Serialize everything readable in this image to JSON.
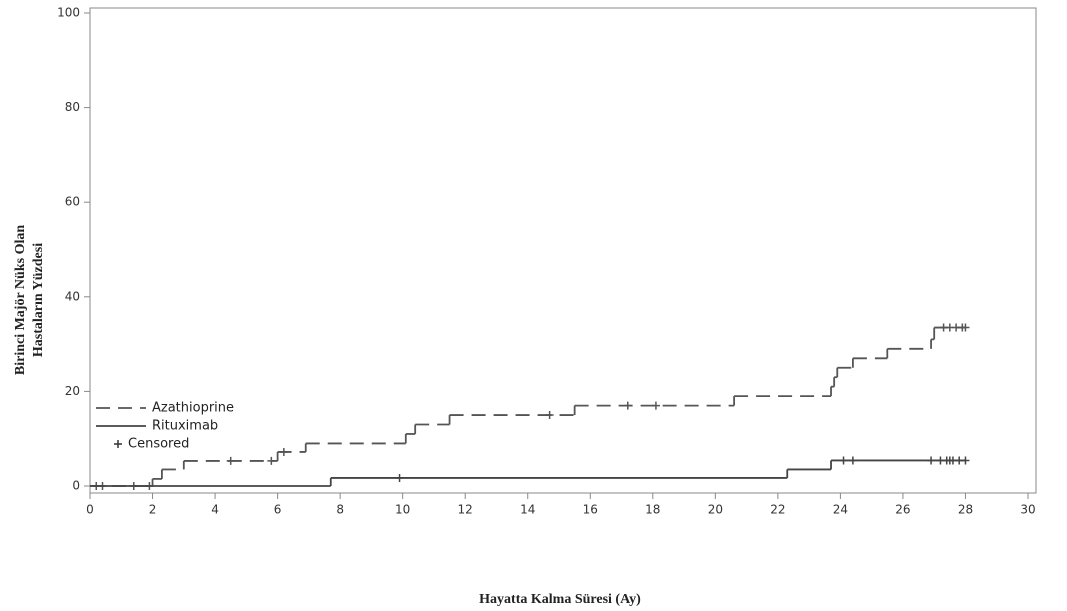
{
  "chart_data": {
    "type": "step",
    "xlabel": "Hayatta Kalma Süresi (Ay)",
    "ylabel": [
      "Birinci Majör Nüks Olan",
      "Hastaların Yüzdesi"
    ],
    "xlim": [
      0,
      30
    ],
    "xticks": [
      0,
      2,
      4,
      6,
      8,
      10,
      12,
      14,
      16,
      18,
      20,
      22,
      24,
      26,
      28,
      30
    ],
    "ylim": [
      0,
      100
    ],
    "yticks": [
      0,
      20,
      40,
      60,
      80,
      100
    ],
    "legend": "lower left",
    "censored_name": "Censored",
    "series": [
      {
        "name": "Azathioprine",
        "color": "#555555",
        "dash": true,
        "x": [
          0,
          2.0,
          2.3,
          3.0,
          6.0,
          6.9,
          10.1,
          10.4,
          11.5,
          15.5,
          20.6,
          23.7,
          23.8,
          23.9,
          24.4,
          25.5,
          26.9,
          27.0,
          28.0
        ],
        "values": [
          0,
          1.5,
          3.5,
          5.3,
          7.2,
          9,
          11,
          13,
          15,
          17,
          19,
          21,
          23,
          25,
          27,
          29,
          31,
          33.5,
          33.5
        ],
        "censored": {
          "x": [
            0.2,
            0.4,
            1.4,
            1.9,
            4.5,
            5.8,
            6.2,
            14.7,
            17.2,
            18.1,
            27.3,
            27.5,
            27.7,
            27.9,
            28.0
          ],
          "values": [
            0,
            0,
            0,
            0,
            5.3,
            5.3,
            7.2,
            15,
            17,
            17,
            33.5,
            33.5,
            33.5,
            33.5,
            33.5
          ]
        }
      },
      {
        "name": "Rituximab",
        "color": "#444444",
        "dash": false,
        "x": [
          0,
          7.7,
          22.3,
          23.7,
          28.0
        ],
        "values": [
          0,
          1.7,
          3.5,
          5.4,
          5.4
        ],
        "censored": {
          "x": [
            9.9,
            24.1,
            24.4,
            26.9,
            27.2,
            27.4,
            27.5,
            27.6,
            27.8,
            28.0
          ],
          "values": [
            1.7,
            5.4,
            5.4,
            5.4,
            5.4,
            5.4,
            5.4,
            5.4,
            5.4,
            5.4
          ]
        }
      }
    ]
  }
}
